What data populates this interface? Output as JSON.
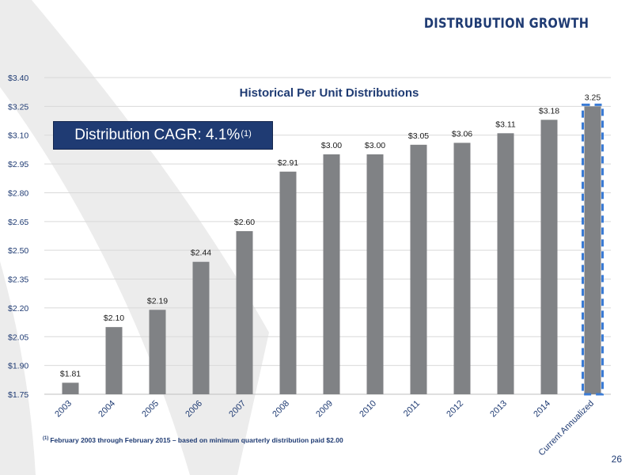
{
  "header": {
    "title": "DISTRUBUTION GROWTH"
  },
  "callout": {
    "text": "Distribution CAGR: 4.1%",
    "footnote_marker": "(1)"
  },
  "footnote": {
    "marker": "(1)",
    "text": "February 2003 through February 2015 – based on minimum quarterly distribution paid $2.00"
  },
  "page_number": "26",
  "colors": {
    "bar": "#808285",
    "accent": "#1f3b73",
    "highlight_dash": "#3a7bd5",
    "grid": "#d9d9d9",
    "swoosh": "#ececec"
  },
  "chart_data": {
    "type": "bar",
    "title": "Historical Per Unit Distributions",
    "xlabel": "",
    "ylabel": "",
    "categories": [
      "2003",
      "2004",
      "2005",
      "2006",
      "2007",
      "2008",
      "2009",
      "2010",
      "2011",
      "2012",
      "2013",
      "2014",
      "Current Annualized"
    ],
    "values": [
      1.81,
      2.1,
      2.19,
      2.44,
      2.6,
      2.91,
      3.0,
      3.0,
      3.05,
      3.06,
      3.11,
      3.18,
      3.25
    ],
    "data_labels": [
      "$1.81",
      "$2.10",
      "$2.19",
      "$2.44",
      "$2.60",
      "$2.91",
      "$3.00",
      "$3.00",
      "$3.05",
      "$3.06",
      "$3.11",
      "$3.18",
      "3.25"
    ],
    "ylim": [
      1.75,
      3.4
    ],
    "y_ticks": [
      1.75,
      1.9,
      2.05,
      2.2,
      2.35,
      2.5,
      2.65,
      2.8,
      2.95,
      3.1,
      3.25,
      3.4
    ],
    "y_tick_labels": [
      "$1.75",
      "$1.90",
      "$2.05",
      "$2.20",
      "$2.35",
      "$2.50",
      "$2.65",
      "$2.80",
      "$2.95",
      "$3.10",
      "$3.25",
      "$3.40"
    ],
    "grid": true,
    "highlighted_category": "Current Annualized",
    "highlight_style": "dashed-outline"
  }
}
